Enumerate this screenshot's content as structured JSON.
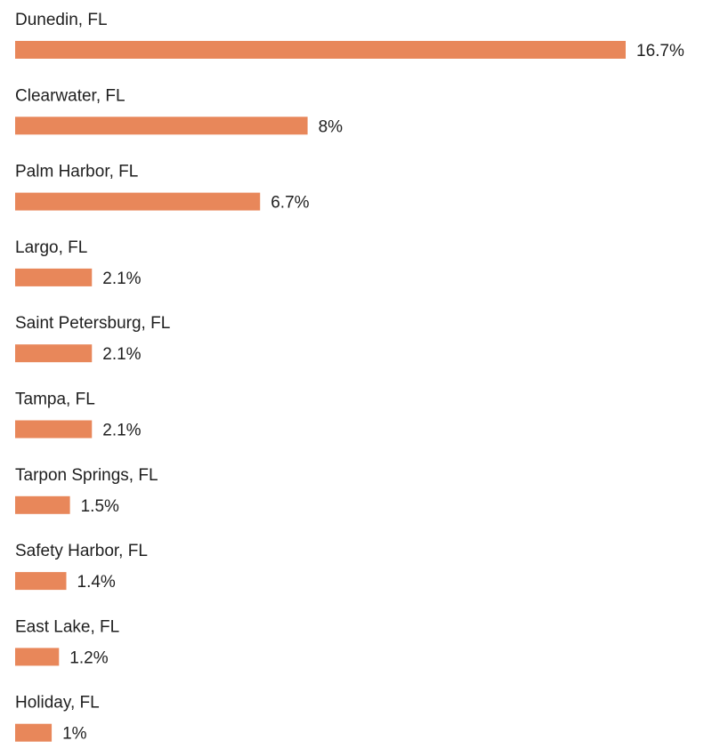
{
  "chart_data": {
    "type": "bar",
    "orientation": "horizontal",
    "categories": [
      "Dunedin, FL",
      "Clearwater, FL",
      "Palm Harbor, FL",
      "Largo, FL",
      "Saint Petersburg, FL",
      "Tampa, FL",
      "Tarpon Springs, FL",
      "Safety Harbor, FL",
      "East Lake, FL",
      "Holiday, FL"
    ],
    "values": [
      16.7,
      8,
      6.7,
      2.1,
      2.1,
      2.1,
      1.5,
      1.4,
      1.2,
      1
    ],
    "value_labels": [
      "16.7%",
      "8%",
      "6.7%",
      "2.1%",
      "2.1%",
      "2.1%",
      "1.5%",
      "1.4%",
      "1.2%",
      "1%"
    ],
    "unit": "%",
    "bar_color": "#e8875a",
    "label_color": "#1f1f1f",
    "grid": false,
    "legend": "none"
  }
}
